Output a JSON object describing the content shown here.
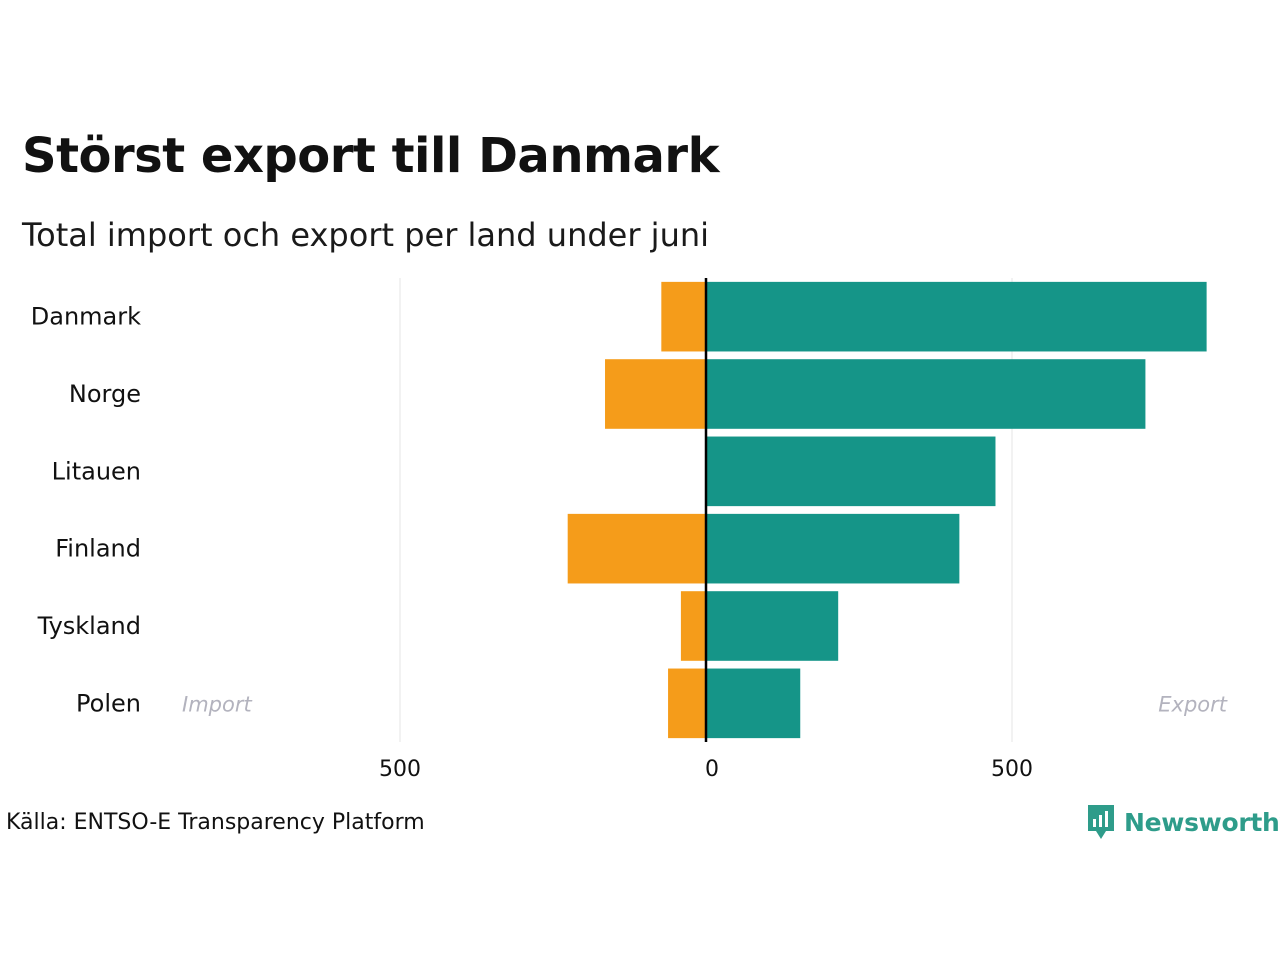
{
  "chart_data": {
    "type": "bar",
    "orientation": "horizontal-diverging",
    "title": "Störst export till Danmark",
    "subtitle": "Total import och export per land under juni",
    "categories": [
      "Danmark",
      "Norge",
      "Litauen",
      "Finland",
      "Tyskland",
      "Polen"
    ],
    "series": [
      {
        "name": "Import",
        "values": [
          -73,
          -165,
          0,
          -226,
          -41,
          -62
        ],
        "color": "#f59c1a"
      },
      {
        "name": "Export",
        "values": [
          818,
          718,
          473,
          414,
          216,
          154
        ],
        "color": "#159588"
      }
    ],
    "xlim": [
      -900,
      850
    ],
    "xticks": [
      -500,
      0,
      500
    ],
    "xtick_labels": [
      "500",
      "0",
      "500"
    ],
    "annotations": {
      "left": "Import",
      "right": "Export"
    },
    "grid": true
  },
  "source": "Källa: ENTSO-E Transparency Platform",
  "logo": {
    "text": "Newsworthy",
    "color": "#2e9c8a"
  }
}
